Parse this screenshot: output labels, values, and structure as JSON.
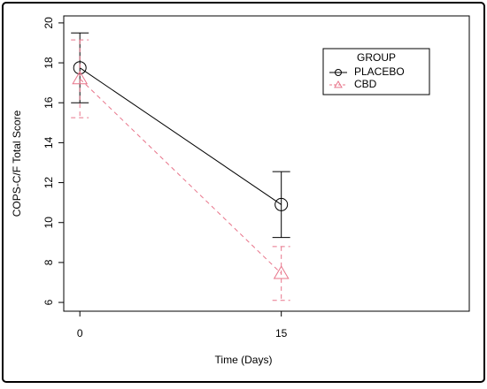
{
  "chart_data": {
    "type": "line",
    "xlabel": "Time (Days)",
    "ylabel": "COPS-C/F Total Score",
    "x": [
      0,
      15
    ],
    "series": [
      {
        "name": "PLACEBO",
        "color": "#000000",
        "linestyle": "solid",
        "marker": "circle",
        "values": [
          17.75,
          10.9
        ],
        "errors": [
          1.75,
          1.65
        ]
      },
      {
        "name": "CBD",
        "color": "#e8748a",
        "linestyle": "dashed",
        "marker": "triangle",
        "values": [
          17.2,
          7.45
        ],
        "errors": [
          1.95,
          1.35
        ]
      }
    ],
    "xlim": [
      -1.2,
      29
    ],
    "ylim": [
      5.56,
      20.35
    ],
    "xticks": [
      0,
      15
    ],
    "yticks": [
      6,
      8,
      10,
      12,
      14,
      16,
      18,
      20
    ],
    "legend_title": "GROUP",
    "legend": "upper right"
  }
}
